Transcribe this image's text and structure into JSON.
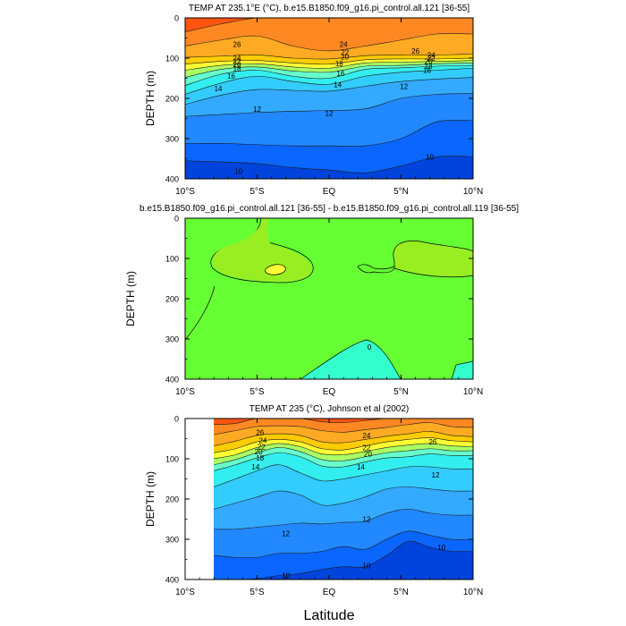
{
  "figure": {
    "xlabel": "Latitude",
    "colors": {
      "border": "#000000",
      "contour": "#1a1a1a",
      "temp_bands": [
        "#0044dd",
        "#0a66ff",
        "#2288ff",
        "#33aaff",
        "#33ccff",
        "#33eeee",
        "#66ffcc",
        "#aaff66",
        "#ffff33",
        "#ffcc00",
        "#ffaa22",
        "#ff8822",
        "#ff5511",
        "#ff0000"
      ],
      "diff_colors": {
        "zero_band": "#33ffcc",
        "main": "#66ff33",
        "positive": "#99ee22",
        "max": "#ffff33"
      }
    }
  },
  "chart_data": [
    {
      "type": "contour",
      "title": "TEMP AT 235.1°E (°C), b.e15.B1850.f09_g16.pi_control.all.121 [36-55]",
      "ylabel": "DEPTH (m)",
      "x_ticks": [
        "10°S",
        "5°S",
        "EQ",
        "5°N",
        "10°N"
      ],
      "x_tick_values": [
        -10,
        -5,
        0,
        5,
        10
      ],
      "xlim": [
        -10,
        10
      ],
      "y_ticks": [
        0,
        100,
        200,
        300,
        400
      ],
      "ylim": [
        400,
        0
      ],
      "x_points": [
        -10,
        -7.5,
        -5,
        -2.5,
        0,
        2.5,
        5,
        7.5,
        10
      ],
      "level_depths": [
        {
          "level": 10,
          "depths": [
            355,
            358,
            362,
            372,
            378,
            385,
            368,
            345,
            345
          ]
        },
        {
          "level": 11,
          "depths": [
            312,
            312,
            315,
            318,
            318,
            318,
            300,
            258,
            255
          ]
        },
        {
          "level": 12,
          "depths": [
            245,
            240,
            235,
            232,
            230,
            226,
            200,
            190,
            188
          ]
        },
        {
          "level": 13,
          "depths": [
            215,
            192,
            178,
            180,
            182,
            170,
            158,
            152,
            148
          ]
        },
        {
          "level": 14,
          "depths": [
            190,
            162,
            145,
            158,
            165,
            145,
            135,
            130,
            125
          ]
        },
        {
          "level": 16,
          "depths": [
            168,
            140,
            130,
            145,
            150,
            128,
            124,
            120,
            118
          ]
        },
        {
          "level": 18,
          "depths": [
            148,
            128,
            122,
            132,
            135,
            120,
            118,
            114,
            112
          ]
        },
        {
          "level": 20,
          "depths": [
            130,
            118,
            114,
            122,
            125,
            112,
            110,
            108,
            106
          ]
        },
        {
          "level": 22,
          "depths": [
            115,
            108,
            106,
            112,
            115,
            104,
            102,
            102,
            100
          ]
        },
        {
          "level": 24,
          "depths": [
            98,
            95,
            92,
            100,
            102,
            94,
            92,
            92,
            90
          ]
        },
        {
          "level": 26,
          "depths": [
            70,
            55,
            45,
            70,
            82,
            70,
            55,
            40,
            40
          ]
        },
        {
          "level": 27,
          "depths": [
            35,
            15,
            0,
            0,
            0,
            0,
            0,
            0,
            0
          ]
        },
        {
          "level": 28,
          "depths": [
            0,
            0,
            0,
            0,
            0,
            0,
            0,
            0,
            0
          ]
        }
      ],
      "labels": [
        {
          "text": "26",
          "x": -6.4,
          "y": 66
        },
        {
          "text": "24",
          "x": -6.4,
          "y": 100
        },
        {
          "text": "22",
          "x": -6.4,
          "y": 108
        },
        {
          "text": "20",
          "x": -6.4,
          "y": 116
        },
        {
          "text": "18",
          "x": -6.4,
          "y": 126
        },
        {
          "text": "16",
          "x": -6.8,
          "y": 144
        },
        {
          "text": "14",
          "x": -7.7,
          "y": 175
        },
        {
          "text": "12",
          "x": -5.0,
          "y": 227
        },
        {
          "text": "24",
          "x": 1.0,
          "y": 66
        },
        {
          "text": "22",
          "x": 1.1,
          "y": 86
        },
        {
          "text": "20",
          "x": 1.1,
          "y": 97
        },
        {
          "text": "18",
          "x": 0.7,
          "y": 113
        },
        {
          "text": "16",
          "x": 0.8,
          "y": 138
        },
        {
          "text": "14",
          "x": 0.6,
          "y": 165
        },
        {
          "text": "12",
          "x": 0.0,
          "y": 237
        },
        {
          "text": "12",
          "x": 5.2,
          "y": 170
        },
        {
          "text": "26",
          "x": 6.0,
          "y": 82
        },
        {
          "text": "24",
          "x": 7.1,
          "y": 92
        },
        {
          "text": "22",
          "x": 7.1,
          "y": 100
        },
        {
          "text": "20",
          "x": 6.9,
          "y": 108
        },
        {
          "text": "18",
          "x": 6.9,
          "y": 120
        },
        {
          "text": "16",
          "x": 6.8,
          "y": 130
        },
        {
          "text": "10",
          "x": -6.3,
          "y": 381
        },
        {
          "text": "10",
          "x": 7.0,
          "y": 345
        }
      ]
    },
    {
      "type": "contour",
      "title": "b.e15.B1850.f09_g16.pi_control.all.121 [36-55] - b.e15.B1850.f09_g16.pi_control.all.119 [36-55]",
      "ylabel": "DEPTH (m)",
      "x_ticks": [
        "10°S",
        "5°S",
        "EQ",
        "5°N",
        "10°N"
      ],
      "x_tick_values": [
        -10,
        -5,
        0,
        5,
        10
      ],
      "xlim": [
        -10,
        10
      ],
      "y_ticks": [
        0,
        100,
        200,
        300,
        400
      ],
      "ylim": [
        400,
        0
      ],
      "labels": [
        {
          "text": "0",
          "x": 2.8,
          "y": 320
        }
      ]
    },
    {
      "type": "contour",
      "title": "TEMP AT 235 (°C), Johnson et al (2002)",
      "ylabel": "DEPTH (m)",
      "x_ticks": [
        "10°S",
        "5°S",
        "EQ",
        "5°N",
        "10°N"
      ],
      "x_tick_values": [
        -10,
        -5,
        0,
        5,
        10
      ],
      "xlim": [
        -10,
        10
      ],
      "y_ticks": [
        0,
        100,
        200,
        300,
        400
      ],
      "ylim": [
        400,
        0
      ],
      "data_xmin": -8,
      "x_points": [
        -8,
        -6.5,
        -5,
        -3.5,
        -2,
        -0.5,
        1,
        2.5,
        4,
        5.5,
        7,
        8.5,
        10
      ],
      "level_depths": [
        {
          "level": 10,
          "depths": [
            400,
            400,
            398,
            390,
            385,
            375,
            368,
            368,
            340,
            305,
            320,
            330,
            330
          ]
        },
        {
          "level": 11,
          "depths": [
            340,
            345,
            345,
            335,
            335,
            330,
            318,
            325,
            300,
            280,
            290,
            300,
            300
          ]
        },
        {
          "level": 12,
          "depths": [
            275,
            275,
            270,
            265,
            260,
            262,
            258,
            255,
            235,
            225,
            235,
            240,
            240
          ]
        },
        {
          "level": 13,
          "depths": [
            225,
            210,
            195,
            180,
            190,
            215,
            210,
            195,
            175,
            170,
            175,
            180,
            180
          ]
        },
        {
          "level": 14,
          "depths": [
            170,
            150,
            130,
            115,
            135,
            155,
            150,
            140,
            130,
            120,
            120,
            125,
            125
          ]
        },
        {
          "level": 16,
          "depths": [
            130,
            115,
            98,
            85,
            95,
            118,
            120,
            108,
            98,
            95,
            88,
            92,
            92
          ]
        },
        {
          "level": 18,
          "depths": [
            115,
            102,
            85,
            72,
            82,
            102,
            105,
            95,
            85,
            80,
            75,
            80,
            80
          ]
        },
        {
          "level": 20,
          "depths": [
            100,
            90,
            72,
            62,
            70,
            88,
            90,
            82,
            72,
            66,
            62,
            68,
            70
          ]
        },
        {
          "level": 22,
          "depths": [
            85,
            75,
            58,
            52,
            58,
            75,
            78,
            68,
            58,
            52,
            48,
            55,
            58
          ]
        },
        {
          "level": 24,
          "depths": [
            68,
            56,
            42,
            38,
            42,
            58,
            60,
            52,
            44,
            38,
            32,
            42,
            45
          ]
        },
        {
          "level": 26,
          "depths": [
            40,
            30,
            20,
            18,
            20,
            30,
            34,
            28,
            22,
            15,
            10,
            20,
            22
          ]
        },
        {
          "level": 27,
          "depths": [
            15,
            12,
            0,
            0,
            0,
            8,
            10,
            5,
            0,
            0,
            0,
            0,
            0
          ]
        },
        {
          "level": 28,
          "depths": [
            0,
            0,
            0,
            0,
            0,
            0,
            0,
            0,
            0,
            0,
            0,
            0,
            0
          ]
        }
      ],
      "labels": [
        {
          "text": "26",
          "x": -4.8,
          "y": 34
        },
        {
          "text": "24",
          "x": -4.6,
          "y": 54
        },
        {
          "text": "22",
          "x": -4.7,
          "y": 70
        },
        {
          "text": "20",
          "x": -4.9,
          "y": 82
        },
        {
          "text": "18",
          "x": -4.8,
          "y": 98
        },
        {
          "text": "14",
          "x": -5.1,
          "y": 120
        },
        {
          "text": "24",
          "x": 2.6,
          "y": 42
        },
        {
          "text": "22",
          "x": 2.6,
          "y": 72
        },
        {
          "text": "20",
          "x": 2.7,
          "y": 88
        },
        {
          "text": "14",
          "x": 2.2,
          "y": 120
        },
        {
          "text": "12",
          "x": 7.4,
          "y": 140
        },
        {
          "text": "12",
          "x": 2.6,
          "y": 250
        },
        {
          "text": "12",
          "x": -3.0,
          "y": 285
        },
        {
          "text": "26",
          "x": 7.2,
          "y": 58
        },
        {
          "text": "10",
          "x": -3.0,
          "y": 390
        },
        {
          "text": "10",
          "x": 2.6,
          "y": 365
        },
        {
          "text": "10",
          "x": 7.8,
          "y": 320
        }
      ]
    }
  ]
}
